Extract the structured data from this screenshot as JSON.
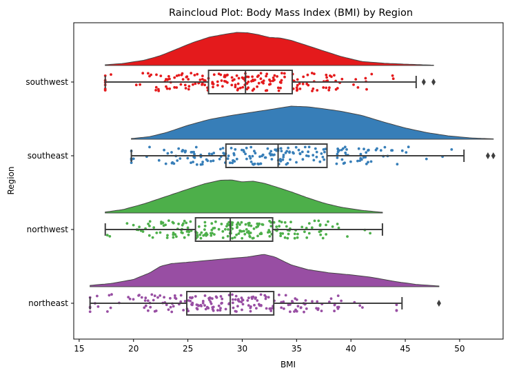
{
  "chart_data": {
    "type": "raincloud",
    "title": "Raincloud Plot: Body Mass Index (BMI) by Region",
    "xlabel": "BMI",
    "ylabel": "Region",
    "xlim": [
      14.5,
      54
    ],
    "xticks": [
      15,
      20,
      25,
      30,
      35,
      40,
      45,
      50
    ],
    "categories": [
      "southwest",
      "southeast",
      "northwest",
      "northeast"
    ],
    "series": [
      {
        "name": "southwest",
        "color": "#e41a1c",
        "box": {
          "whisker_low": 17.4,
          "q1": 26.9,
          "median": 30.3,
          "q3": 34.6,
          "whisker_high": 46.0
        },
        "outliers": [
          46.7,
          47.6
        ],
        "density_range": [
          17.4,
          47.6
        ],
        "density_x": [
          17.4,
          19,
          21,
          22.5,
          24,
          25.5,
          27,
          28.5,
          29.5,
          30.5,
          31.5,
          32.5,
          33.5,
          34.5,
          36,
          37.5,
          39,
          41,
          43,
          45,
          47.6
        ],
        "density_y": [
          0.02,
          0.06,
          0.16,
          0.3,
          0.5,
          0.7,
          0.86,
          0.95,
          1.0,
          0.99,
          0.93,
          0.85,
          0.83,
          0.76,
          0.6,
          0.44,
          0.28,
          0.12,
          0.07,
          0.04,
          0.01
        ]
      },
      {
        "name": "southeast",
        "color": "#377eb8",
        "box": {
          "whisker_low": 19.8,
          "q1": 28.5,
          "median": 33.3,
          "q3": 37.8,
          "whisker_high": 50.4
        },
        "outliers": [
          52.6,
          53.1
        ],
        "density_range": [
          19.8,
          53.1
        ],
        "density_x": [
          19.8,
          21.5,
          23,
          25,
          27,
          29,
          31,
          33,
          34.5,
          36,
          37.5,
          39,
          41,
          43,
          45,
          47,
          49,
          51,
          53.1
        ],
        "density_y": [
          0.02,
          0.08,
          0.2,
          0.42,
          0.6,
          0.72,
          0.82,
          0.92,
          1.0,
          0.98,
          0.92,
          0.85,
          0.72,
          0.52,
          0.34,
          0.2,
          0.1,
          0.04,
          0.01
        ]
      },
      {
        "name": "northwest",
        "color": "#4daf4a",
        "box": {
          "whisker_low": 17.4,
          "q1": 25.7,
          "median": 28.9,
          "q3": 32.8,
          "whisker_high": 42.9
        },
        "outliers": [],
        "density_range": [
          17.4,
          42.9
        ],
        "density_x": [
          17.4,
          19,
          21,
          23,
          25,
          26.5,
          28,
          29,
          30,
          31,
          32,
          33,
          34.5,
          36,
          37.5,
          39,
          41,
          42.9
        ],
        "density_y": [
          0.03,
          0.1,
          0.28,
          0.5,
          0.72,
          0.88,
          0.99,
          1.0,
          0.94,
          0.96,
          0.9,
          0.8,
          0.64,
          0.46,
          0.3,
          0.18,
          0.08,
          0.02
        ]
      },
      {
        "name": "northeast",
        "color": "#984ea3",
        "box": {
          "whisker_low": 16.0,
          "q1": 24.9,
          "median": 28.9,
          "q3": 32.9,
          "whisker_high": 44.7
        },
        "outliers": [
          48.1
        ],
        "density_range": [
          16.0,
          48.1
        ],
        "density_x": [
          16.0,
          18,
          20,
          21.5,
          22.5,
          23.5,
          25,
          27,
          29,
          30.5,
          32,
          33,
          34.5,
          36,
          38,
          40,
          42,
          44,
          46,
          48.1
        ],
        "density_y": [
          0.04,
          0.1,
          0.22,
          0.42,
          0.62,
          0.7,
          0.74,
          0.8,
          0.86,
          0.9,
          0.98,
          0.9,
          0.66,
          0.52,
          0.42,
          0.36,
          0.28,
          0.16,
          0.07,
          0.02
        ]
      }
    ],
    "grid": false,
    "legend": "none"
  }
}
